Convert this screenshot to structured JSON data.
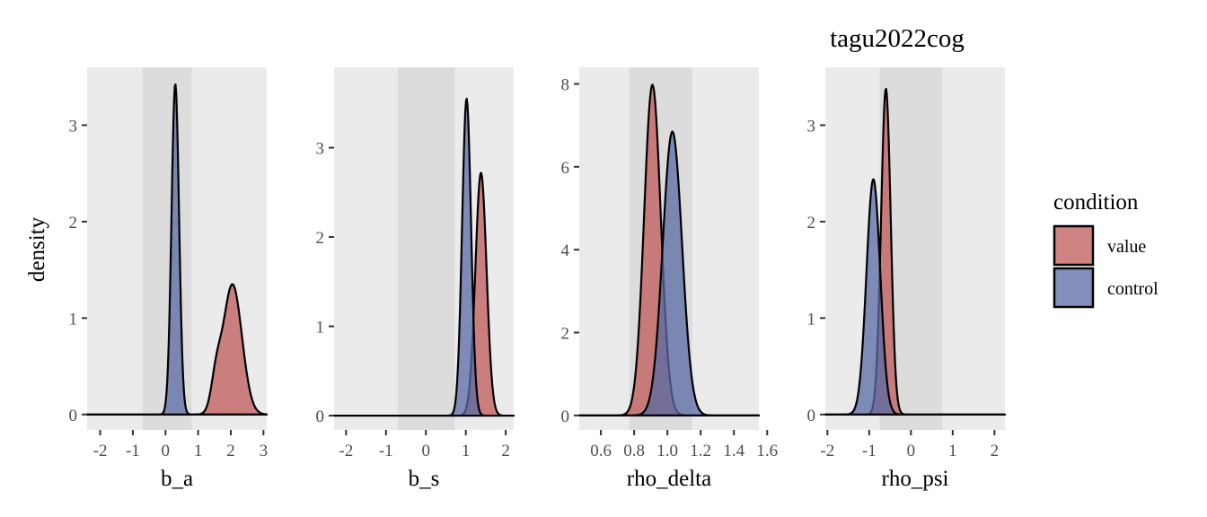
{
  "title": "tagu2022cog",
  "ylabel": "density",
  "legend": {
    "title": "condition",
    "placement": "right",
    "entries": [
      {
        "label": "value",
        "color": "#c0595a"
      },
      {
        "label": "control",
        "color": "#5a6ba4"
      }
    ]
  },
  "colors": {
    "panel_bg": "#ebebeb",
    "band_bg": "#dcdcdc",
    "value_fill": "#c0595a",
    "control_fill": "#5a6ba4",
    "outline": "#000000"
  },
  "chart_data": [
    {
      "type": "area",
      "xlabel": "b_a",
      "xlim": [
        -2.4,
        3.1
      ],
      "ylim": [
        -0.16,
        3.6
      ],
      "xticks": [
        -2,
        -1,
        0,
        1,
        2,
        3
      ],
      "xtick_labels": [
        "-2",
        "-1",
        "0",
        "1",
        "2",
        "3"
      ],
      "yticks": [
        0,
        1,
        2,
        3
      ],
      "ytick_labels": [
        "0",
        "1",
        "2",
        "3"
      ],
      "band": [
        -0.7,
        0.8
      ],
      "series": [
        {
          "name": "value",
          "peaks": [
            {
              "center": 2.05,
              "sd": 0.29,
              "height": 1.35
            },
            {
              "center": 1.55,
              "sd": 0.15,
              "height": 0.3
            }
          ]
        },
        {
          "name": "control",
          "peaks": [
            {
              "center": 0.3,
              "sd": 0.115,
              "height": 3.43
            }
          ]
        }
      ]
    },
    {
      "type": "area",
      "xlabel": "b_s",
      "xlim": [
        -2.3,
        2.2
      ],
      "ylim": [
        -0.16,
        3.9
      ],
      "xticks": [
        -2,
        -1,
        0,
        1,
        2
      ],
      "xtick_labels": [
        "-2",
        "-1",
        "0",
        "1",
        "2"
      ],
      "yticks": [
        0,
        1,
        2,
        3
      ],
      "ytick_labels": [
        "0",
        "1",
        "2",
        "3"
      ],
      "band": [
        -0.7,
        0.72
      ],
      "series": [
        {
          "name": "value",
          "peaks": [
            {
              "center": 1.38,
              "sd": 0.14,
              "height": 2.72
            }
          ]
        },
        {
          "name": "control",
          "peaks": [
            {
              "center": 1.02,
              "sd": 0.112,
              "height": 3.55
            }
          ]
        }
      ]
    },
    {
      "type": "area",
      "xlabel": "rho_delta",
      "xlim": [
        0.47,
        1.55
      ],
      "ylim": [
        -0.35,
        8.4
      ],
      "xticks": [
        0.6,
        0.8,
        1.0,
        1.2,
        1.4,
        1.6
      ],
      "xtick_labels": [
        "0.6",
        "0.8",
        "1.0",
        "1.2",
        "1.4",
        "1.6"
      ],
      "yticks": [
        0,
        2,
        4,
        6,
        8
      ],
      "ytick_labels": [
        "0",
        "2",
        "4",
        "6",
        "8"
      ],
      "band": [
        0.77,
        1.15
      ],
      "series": [
        {
          "name": "value",
          "peaks": [
            {
              "center": 0.91,
              "sd": 0.05,
              "height": 7.98
            }
          ]
        },
        {
          "name": "control",
          "peaks": [
            {
              "center": 1.03,
              "sd": 0.058,
              "height": 6.85
            }
          ]
        }
      ]
    },
    {
      "type": "area",
      "xlabel": "rho_psi",
      "xlim": [
        -2.05,
        2.25
      ],
      "ylim": [
        -0.16,
        3.6
      ],
      "xticks": [
        -2,
        -1,
        0,
        1,
        2
      ],
      "xtick_labels": [
        "-2",
        "-1",
        "0",
        "1",
        "2"
      ],
      "yticks": [
        0,
        1,
        2,
        3
      ],
      "ytick_labels": [
        "0",
        "1",
        "2",
        "3"
      ],
      "band": [
        -0.75,
        0.75
      ],
      "series": [
        {
          "name": "value",
          "peaks": [
            {
              "center": -0.6,
              "sd": 0.115,
              "height": 3.38
            }
          ]
        },
        {
          "name": "control",
          "peaks": [
            {
              "center": -0.9,
              "sd": 0.165,
              "height": 2.44
            }
          ]
        }
      ]
    }
  ]
}
